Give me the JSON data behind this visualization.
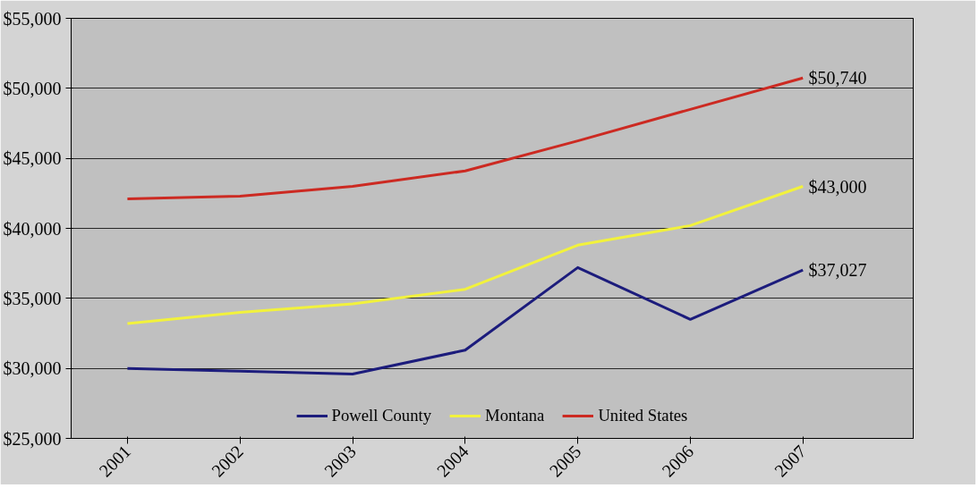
{
  "chart_data": {
    "type": "line",
    "categories": [
      "2001",
      "2002",
      "2003",
      "2004",
      "2005",
      "2006",
      "2007"
    ],
    "series": [
      {
        "name": "Powell County",
        "color": "#1c1c7c",
        "values": [
          30000,
          29800,
          29600,
          31300,
          37200,
          33500,
          37027
        ],
        "value_labels": [
          null,
          null,
          null,
          null,
          null,
          null,
          "$37,027"
        ]
      },
      {
        "name": "Montana",
        "color": "#f2f23c",
        "values": [
          33200,
          34000,
          34600,
          35650,
          38800,
          40200,
          43000
        ],
        "value_labels": [
          null,
          null,
          null,
          null,
          null,
          null,
          "$43,000"
        ]
      },
      {
        "name": "United States",
        "color": "#cc2a22",
        "values": [
          42100,
          42300,
          43000,
          44100,
          46250,
          48500,
          50740
        ],
        "value_labels": [
          null,
          null,
          null,
          null,
          null,
          null,
          "$50,740"
        ]
      }
    ],
    "ylim": [
      25000,
      55000
    ],
    "yticks": [
      {
        "value": 25000,
        "label": "$25,000"
      },
      {
        "value": 30000,
        "label": "$30,000"
      },
      {
        "value": 35000,
        "label": "$35,000"
      },
      {
        "value": 40000,
        "label": "$40,000"
      },
      {
        "value": 45000,
        "label": "$45,000"
      },
      {
        "value": 50000,
        "label": "$50,000"
      },
      {
        "value": 55000,
        "label": "$55,000"
      }
    ],
    "grid": "y",
    "legend": "bottom",
    "marker": "none",
    "line_style": "solid"
  }
}
